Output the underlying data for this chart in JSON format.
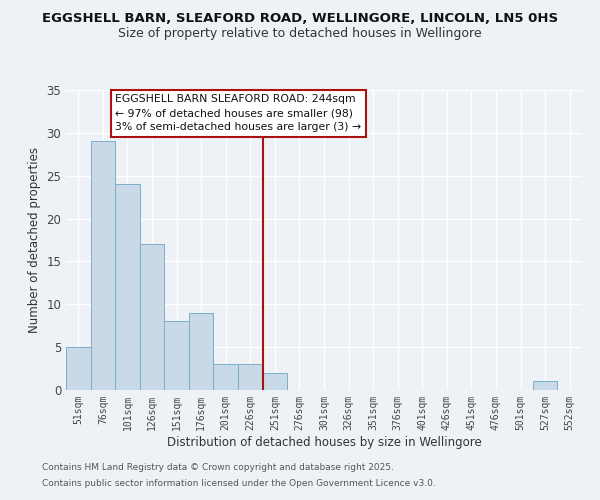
{
  "title": "EGGSHELL BARN, SLEAFORD ROAD, WELLINGORE, LINCOLN, LN5 0HS",
  "subtitle": "Size of property relative to detached houses in Wellingore",
  "xlabel": "Distribution of detached houses by size in Wellingore",
  "ylabel": "Number of detached properties",
  "bar_labels": [
    "51sqm",
    "76sqm",
    "101sqm",
    "126sqm",
    "151sqm",
    "176sqm",
    "201sqm",
    "226sqm",
    "251sqm",
    "276sqm",
    "301sqm",
    "326sqm",
    "351sqm",
    "376sqm",
    "401sqm",
    "426sqm",
    "451sqm",
    "476sqm",
    "501sqm",
    "527sqm",
    "552sqm"
  ],
  "bar_values": [
    5,
    29,
    24,
    17,
    8,
    9,
    3,
    3,
    2,
    0,
    0,
    0,
    0,
    0,
    0,
    0,
    0,
    0,
    0,
    1,
    0
  ],
  "bar_color": "#c9d9e8",
  "bar_edge_color": "#7aafc8",
  "ylim": [
    0,
    35
  ],
  "yticks": [
    0,
    5,
    10,
    15,
    20,
    25,
    30,
    35
  ],
  "vline_x_index": 8,
  "vline_color": "#aa1111",
  "annotation_text": "EGGSHELL BARN SLEAFORD ROAD: 244sqm\n← 97% of detached houses are smaller (98)\n3% of semi-detached houses are larger (3) →",
  "annotation_box_color": "#ffffff",
  "annotation_box_edge": "#aa1111",
  "background_color": "#eef2f7",
  "footer1": "Contains HM Land Registry data © Crown copyright and database right 2025.",
  "footer2": "Contains public sector information licensed under the Open Government Licence v3.0.",
  "title_fontsize": 9.5,
  "subtitle_fontsize": 9,
  "annotation_fontsize": 7.8,
  "tick_label_fontsize": 7,
  "axis_label_fontsize": 8.5,
  "footer_fontsize": 6.5
}
